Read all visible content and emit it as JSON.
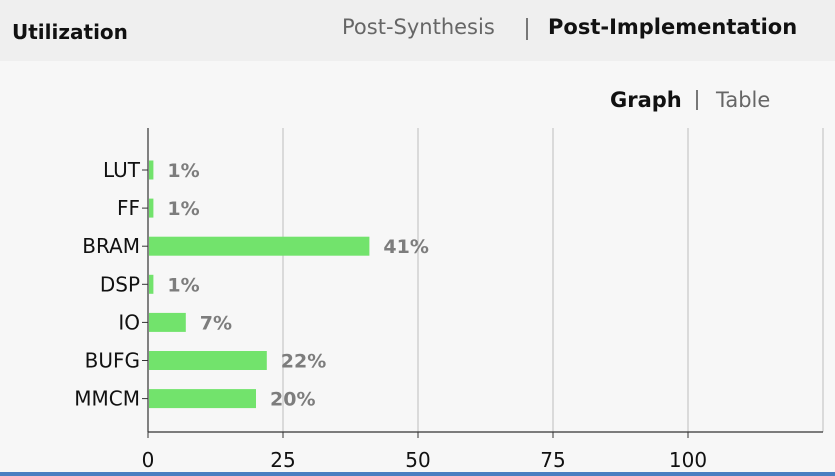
{
  "header": {
    "title": "Utilization",
    "tabs": [
      {
        "label": "Post-Synthesis",
        "active": false
      },
      {
        "label": "Post-Implementation",
        "active": true
      }
    ]
  },
  "view_toggle": {
    "options": [
      {
        "label": "Graph",
        "active": true
      },
      {
        "label": "Table",
        "active": false
      }
    ]
  },
  "colors": {
    "bar": "#72e36c",
    "grid": "#bdbdbd",
    "axis": "#333333",
    "value_label": "#7d7d7d"
  },
  "chart_data": {
    "type": "bar",
    "orientation": "horizontal",
    "categories": [
      "LUT",
      "FF",
      "BRAM",
      "DSP",
      "IO",
      "BUFG",
      "MMCM"
    ],
    "values": [
      1,
      1,
      41,
      1,
      7,
      22,
      20
    ],
    "value_labels": [
      "1%",
      "1%",
      "41%",
      "1%",
      "7%",
      "22%",
      "20%"
    ],
    "xlim": [
      0,
      125
    ],
    "x_ticks": [
      0,
      25,
      50,
      75,
      100
    ],
    "x_tick_labels": [
      "0",
      "25",
      "50",
      "75",
      "100"
    ],
    "grid": true
  }
}
